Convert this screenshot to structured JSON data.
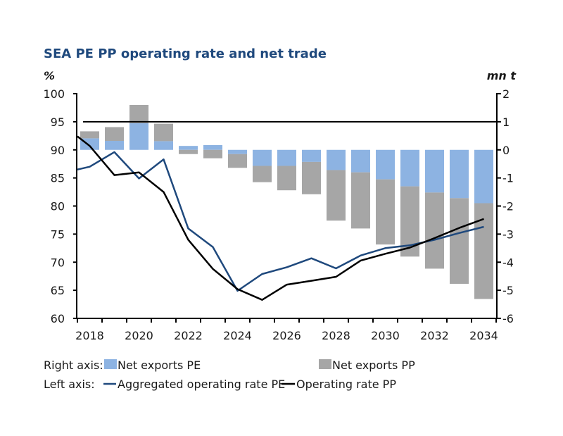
{
  "chart_data": {
    "type": "bar+line",
    "title": "SEA PE PP operating rate and net trade",
    "left_axis": {
      "label": "%",
      "ylim": [
        60,
        100
      ],
      "ticks": [
        60,
        65,
        70,
        75,
        80,
        85,
        90,
        95,
        100
      ]
    },
    "right_axis": {
      "label": "mn t",
      "ylim": [
        -6,
        2
      ],
      "ticks": [
        -6,
        -5,
        -4,
        -3,
        -2,
        -1,
        0,
        1,
        2
      ]
    },
    "categories": [
      2018,
      2019,
      2020,
      2021,
      2022,
      2023,
      2024,
      2025,
      2026,
      2027,
      2028,
      2029,
      2030,
      2031,
      2032,
      2033,
      2034
    ],
    "x_tick_labels": [
      "2018",
      "2020",
      "2022",
      "2024",
      "2026",
      "2028",
      "2030",
      "2032",
      "2034"
    ],
    "reference_line_left": 95,
    "bars_stacked": true,
    "bar_series": [
      {
        "name": "Net exports PE",
        "axis": "right",
        "color": "#8db3e2",
        "values": [
          0.41,
          0.32,
          0.95,
          0.31,
          0.14,
          0.17,
          -0.15,
          -0.57,
          -0.57,
          -0.43,
          -0.72,
          -0.8,
          -1.05,
          -1.3,
          -1.52,
          -1.72,
          -1.9
        ]
      },
      {
        "name": "Net exports PP",
        "axis": "right",
        "color": "#a6a6a6",
        "values": [
          0.25,
          0.49,
          0.65,
          0.62,
          -0.15,
          -0.3,
          -0.49,
          -0.58,
          -0.87,
          -1.15,
          -1.8,
          -2.0,
          -2.32,
          -2.5,
          -2.71,
          -3.05,
          -3.41
        ]
      }
    ],
    "line_series": [
      {
        "name": "Aggregated operating rate PE",
        "axis": "left",
        "color": "#1f497d",
        "x": [
          2017.5,
          2018,
          2019,
          2020,
          2021,
          2022,
          2023,
          2024,
          2025,
          2026,
          2027,
          2028,
          2029,
          2030,
          2031,
          2032,
          2033,
          2034
        ],
        "values": [
          86.5,
          87.0,
          89.6,
          84.9,
          88.3,
          76.0,
          72.7,
          64.9,
          67.9,
          69.1,
          70.7,
          68.9,
          71.2,
          72.5,
          73.0,
          74.0,
          75.2,
          76.3
        ]
      },
      {
        "name": "Operating rate PP",
        "axis": "left",
        "color": "#000000",
        "x": [
          2017.5,
          2018,
          2019,
          2020,
          2021,
          2022,
          2023,
          2024,
          2025,
          2026,
          2027,
          2028,
          2029,
          2030,
          2031,
          2032,
          2033,
          2034
        ],
        "values": [
          92.4,
          90.7,
          85.5,
          86.0,
          82.5,
          74.0,
          68.8,
          65.2,
          63.3,
          66.0,
          66.7,
          67.4,
          70.3,
          71.5,
          72.6,
          74.3,
          76.1,
          77.7
        ]
      }
    ],
    "legend": {
      "right_axis_label": "Right axis:",
      "left_axis_label": "Left axis:",
      "placement": "bottom"
    }
  }
}
